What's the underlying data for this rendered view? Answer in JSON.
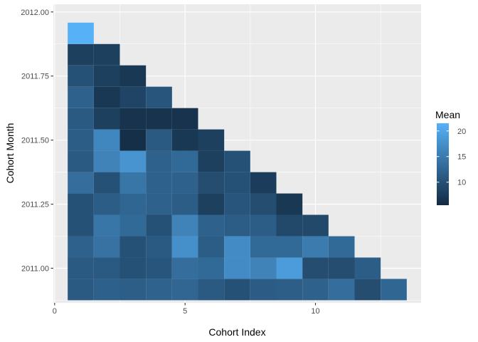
{
  "chart_data": {
    "type": "heatmap",
    "xlabel": "Cohort Index",
    "ylabel": "Cohort Month",
    "x_ticks": [
      0,
      5,
      10
    ],
    "x_tick_labels": [
      "0",
      "5",
      "10"
    ],
    "y_ticks": [
      2011.0,
      2011.25,
      2011.5,
      2011.75,
      2012.0
    ],
    "y_tick_labels": [
      "2011.00",
      "2011.25",
      "2011.50",
      "2011.75",
      "2012.00"
    ],
    "xlim": [
      -0.05,
      14.05
    ],
    "ylim": [
      2010.865,
      2012.03
    ],
    "grid": true,
    "legend": {
      "title": "Mean",
      "position": "right",
      "ticks": [
        10,
        15,
        20
      ],
      "tick_labels": [
        "10",
        "15",
        "20"
      ],
      "min": 5.5,
      "max": 21.5,
      "color_low": "#132b43",
      "color_high": "#56b1f7"
    },
    "cohorts": [
      2010.9167,
      2011.0,
      2011.0833,
      2011.1667,
      2011.25,
      2011.3333,
      2011.4167,
      2011.5,
      2011.5833,
      2011.6667,
      2011.75,
      2011.8333,
      2011.9167
    ],
    "values": [
      [
        11.0,
        11.8,
        11.6,
        12.2,
        12.6,
        11.0,
        10.0,
        11.4,
        11.6,
        12.0,
        13.5,
        9.5,
        12.5
      ],
      [
        11.0,
        11.0,
        10.0,
        10.5,
        13.5,
        13.0,
        17.0,
        16.0,
        19.0,
        9.5,
        9.5,
        11.5
      ],
      [
        12.0,
        14.0,
        10.0,
        11.0,
        17.5,
        11.5,
        17.0,
        13.0,
        13.0,
        15.0,
        13.0
      ],
      [
        10.0,
        14.5,
        13.0,
        10.0,
        16.0,
        12.0,
        11.5,
        11.5,
        9.0,
        9.0
      ],
      [
        10.0,
        11.5,
        12.5,
        12.0,
        11.5,
        8.0,
        10.5,
        9.5,
        7.0
      ],
      [
        13.5,
        10.0,
        14.5,
        12.0,
        12.0,
        9.5,
        10.0,
        7.5
      ],
      [
        11.0,
        16.0,
        18.0,
        12.0,
        13.0,
        8.0,
        10.0
      ],
      [
        11.5,
        16.5,
        6.0,
        11.0,
        7.0,
        8.0
      ],
      [
        11.0,
        8.0,
        6.5,
        6.5,
        6.5
      ],
      [
        12.0,
        7.0,
        8.5,
        10.5
      ],
      [
        10.0,
        8.0,
        7.0
      ],
      [
        8.0,
        8.0
      ],
      [
        21.5
      ]
    ]
  }
}
